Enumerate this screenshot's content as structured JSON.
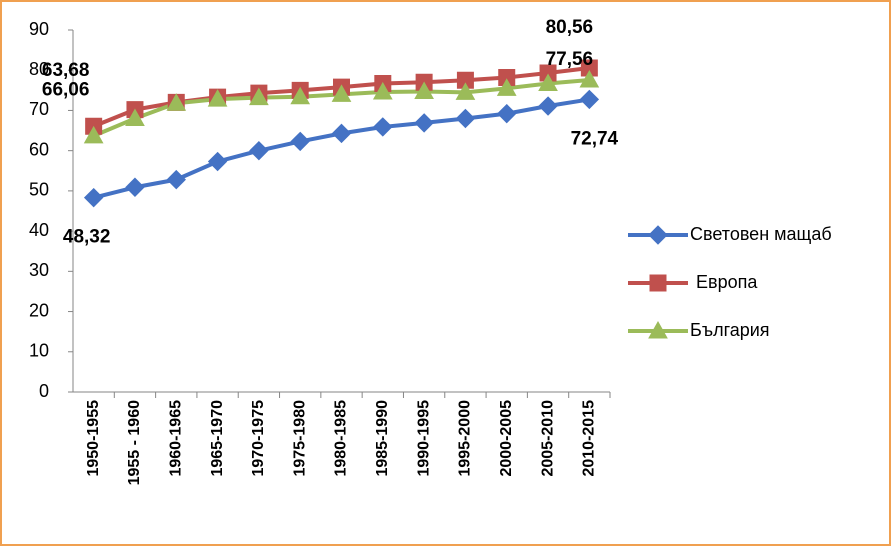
{
  "chart_data": {
    "type": "line",
    "categories": [
      "1950-1955",
      "1955 - 1960",
      "1960-1965",
      "1965-1970",
      "1970-1975",
      "1975-1980",
      "1980-1985",
      "1985-1990",
      "1990-1995",
      "1995-2000",
      "2000-2005",
      "2005-2010",
      "2010-2015"
    ],
    "series": [
      {
        "name": "Световен мащаб",
        "color": "#4472c4",
        "marker": "diamond",
        "values": [
          48.32,
          50.9,
          52.8,
          57.3,
          60.0,
          62.3,
          64.3,
          65.9,
          66.9,
          68.0,
          69.2,
          71.1,
          72.74
        ],
        "value_labels": [
          "48,32",
          null,
          null,
          null,
          null,
          null,
          null,
          null,
          null,
          null,
          null,
          null,
          "72,74"
        ]
      },
      {
        "name": "Европа",
        "color": "#c0504d",
        "marker": "square",
        "values": [
          66.06,
          70.2,
          72.0,
          73.3,
          74.3,
          75.0,
          75.8,
          76.7,
          77.0,
          77.5,
          78.2,
          79.3,
          80.56
        ],
        "value_labels": [
          "66,06",
          null,
          null,
          null,
          null,
          null,
          null,
          null,
          null,
          null,
          null,
          null,
          "80,56"
        ]
      },
      {
        "name": "България",
        "color": "#9bbb59",
        "marker": "triangle",
        "values": [
          63.68,
          68.0,
          71.8,
          72.8,
          73.2,
          73.4,
          74.0,
          74.6,
          74.7,
          74.5,
          75.5,
          76.7,
          77.56
        ],
        "value_labels": [
          "63,68",
          null,
          null,
          null,
          null,
          null,
          null,
          null,
          null,
          null,
          null,
          null,
          "77,56"
        ]
      }
    ],
    "ylim": [
      0,
      90
    ],
    "yticks": [
      0,
      10,
      20,
      30,
      40,
      50,
      60,
      70,
      80,
      90
    ],
    "legend": "right"
  }
}
